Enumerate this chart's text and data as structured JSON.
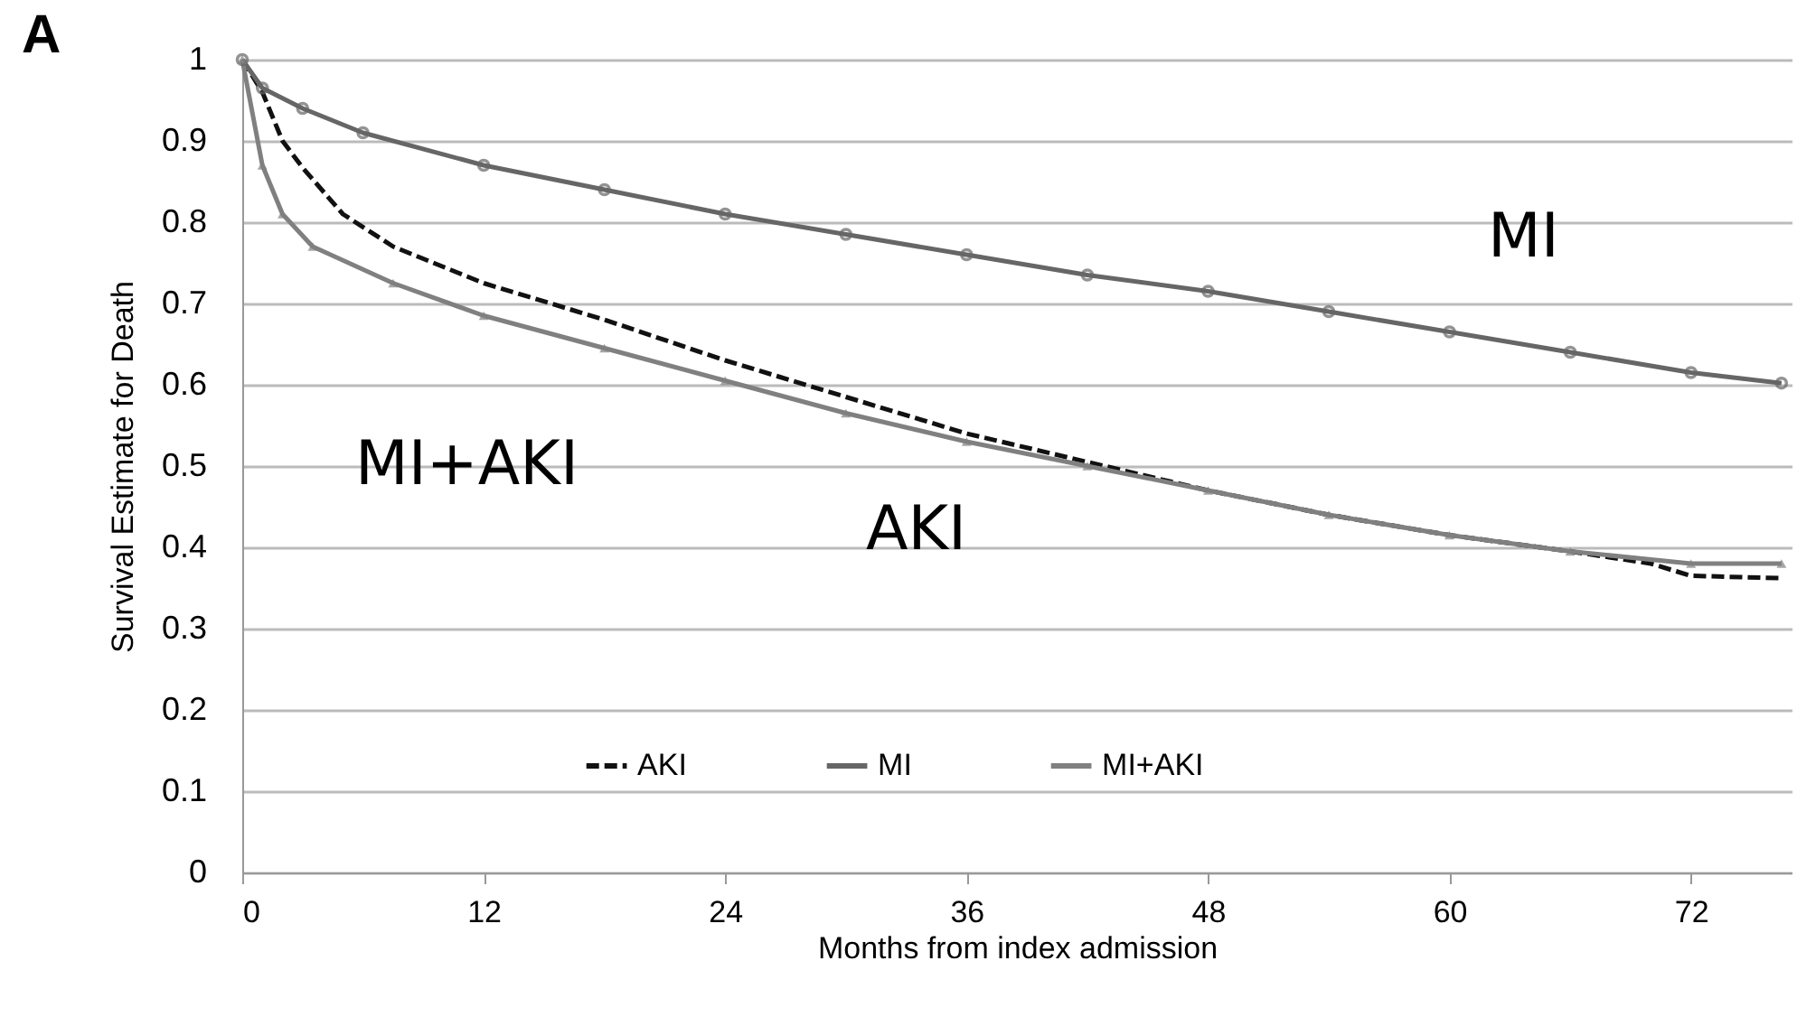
{
  "chart_data": {
    "type": "line",
    "xlabel": "Months from index admission",
    "ylabel": "Survival Estimate for Death",
    "annotations": [
      "A",
      "MI",
      "MI+AKI",
      "AKI"
    ],
    "series": [
      {
        "name": "AKI",
        "color": "#111111",
        "line_style": "dashed",
        "marker": "none",
        "x": [
          0,
          1,
          2,
          3,
          5,
          7.5,
          12,
          18,
          24,
          30,
          36,
          42,
          48,
          54,
          60,
          66,
          70,
          72,
          76.5
        ],
        "values": [
          1,
          0.96,
          0.9,
          0.867,
          0.81,
          0.77,
          0.725,
          0.68,
          0.63,
          0.585,
          0.54,
          0.505,
          0.47,
          0.44,
          0.415,
          0.395,
          0.38,
          0.365,
          0.362
        ]
      },
      {
        "name": "MI",
        "color": "#666666",
        "line_style": "solid",
        "marker": "circle",
        "x": [
          0,
          1,
          3,
          6,
          12,
          18,
          24,
          30,
          36,
          42,
          48,
          54,
          60,
          66,
          72,
          76.5
        ],
        "values": [
          1,
          0.965,
          0.94,
          0.91,
          0.87,
          0.84,
          0.81,
          0.785,
          0.76,
          0.735,
          0.715,
          0.69,
          0.665,
          0.64,
          0.615,
          0.602
        ]
      },
      {
        "name": "MI+AKI",
        "color": "#808080",
        "line_style": "solid",
        "marker": "triangle",
        "x": [
          0,
          1,
          2,
          3.5,
          7.5,
          12,
          18,
          24,
          30,
          36,
          42,
          48,
          54,
          60,
          66,
          72,
          76.5
        ],
        "values": [
          1,
          0.87,
          0.81,
          0.77,
          0.725,
          0.685,
          0.645,
          0.605,
          0.565,
          0.53,
          0.5,
          0.47,
          0.44,
          0.415,
          0.395,
          0.38,
          0.38
        ]
      }
    ],
    "xlim": [
      0,
      77
    ],
    "xticks": [
      0,
      12,
      24,
      36,
      48,
      60,
      72
    ],
    "ylim": [
      0,
      1
    ],
    "yticks": [
      0,
      0.1,
      0.2,
      0.3,
      0.4,
      0.5,
      0.6,
      0.7,
      0.8,
      0.9,
      1
    ],
    "grid": "y",
    "legend": "bottom"
  }
}
